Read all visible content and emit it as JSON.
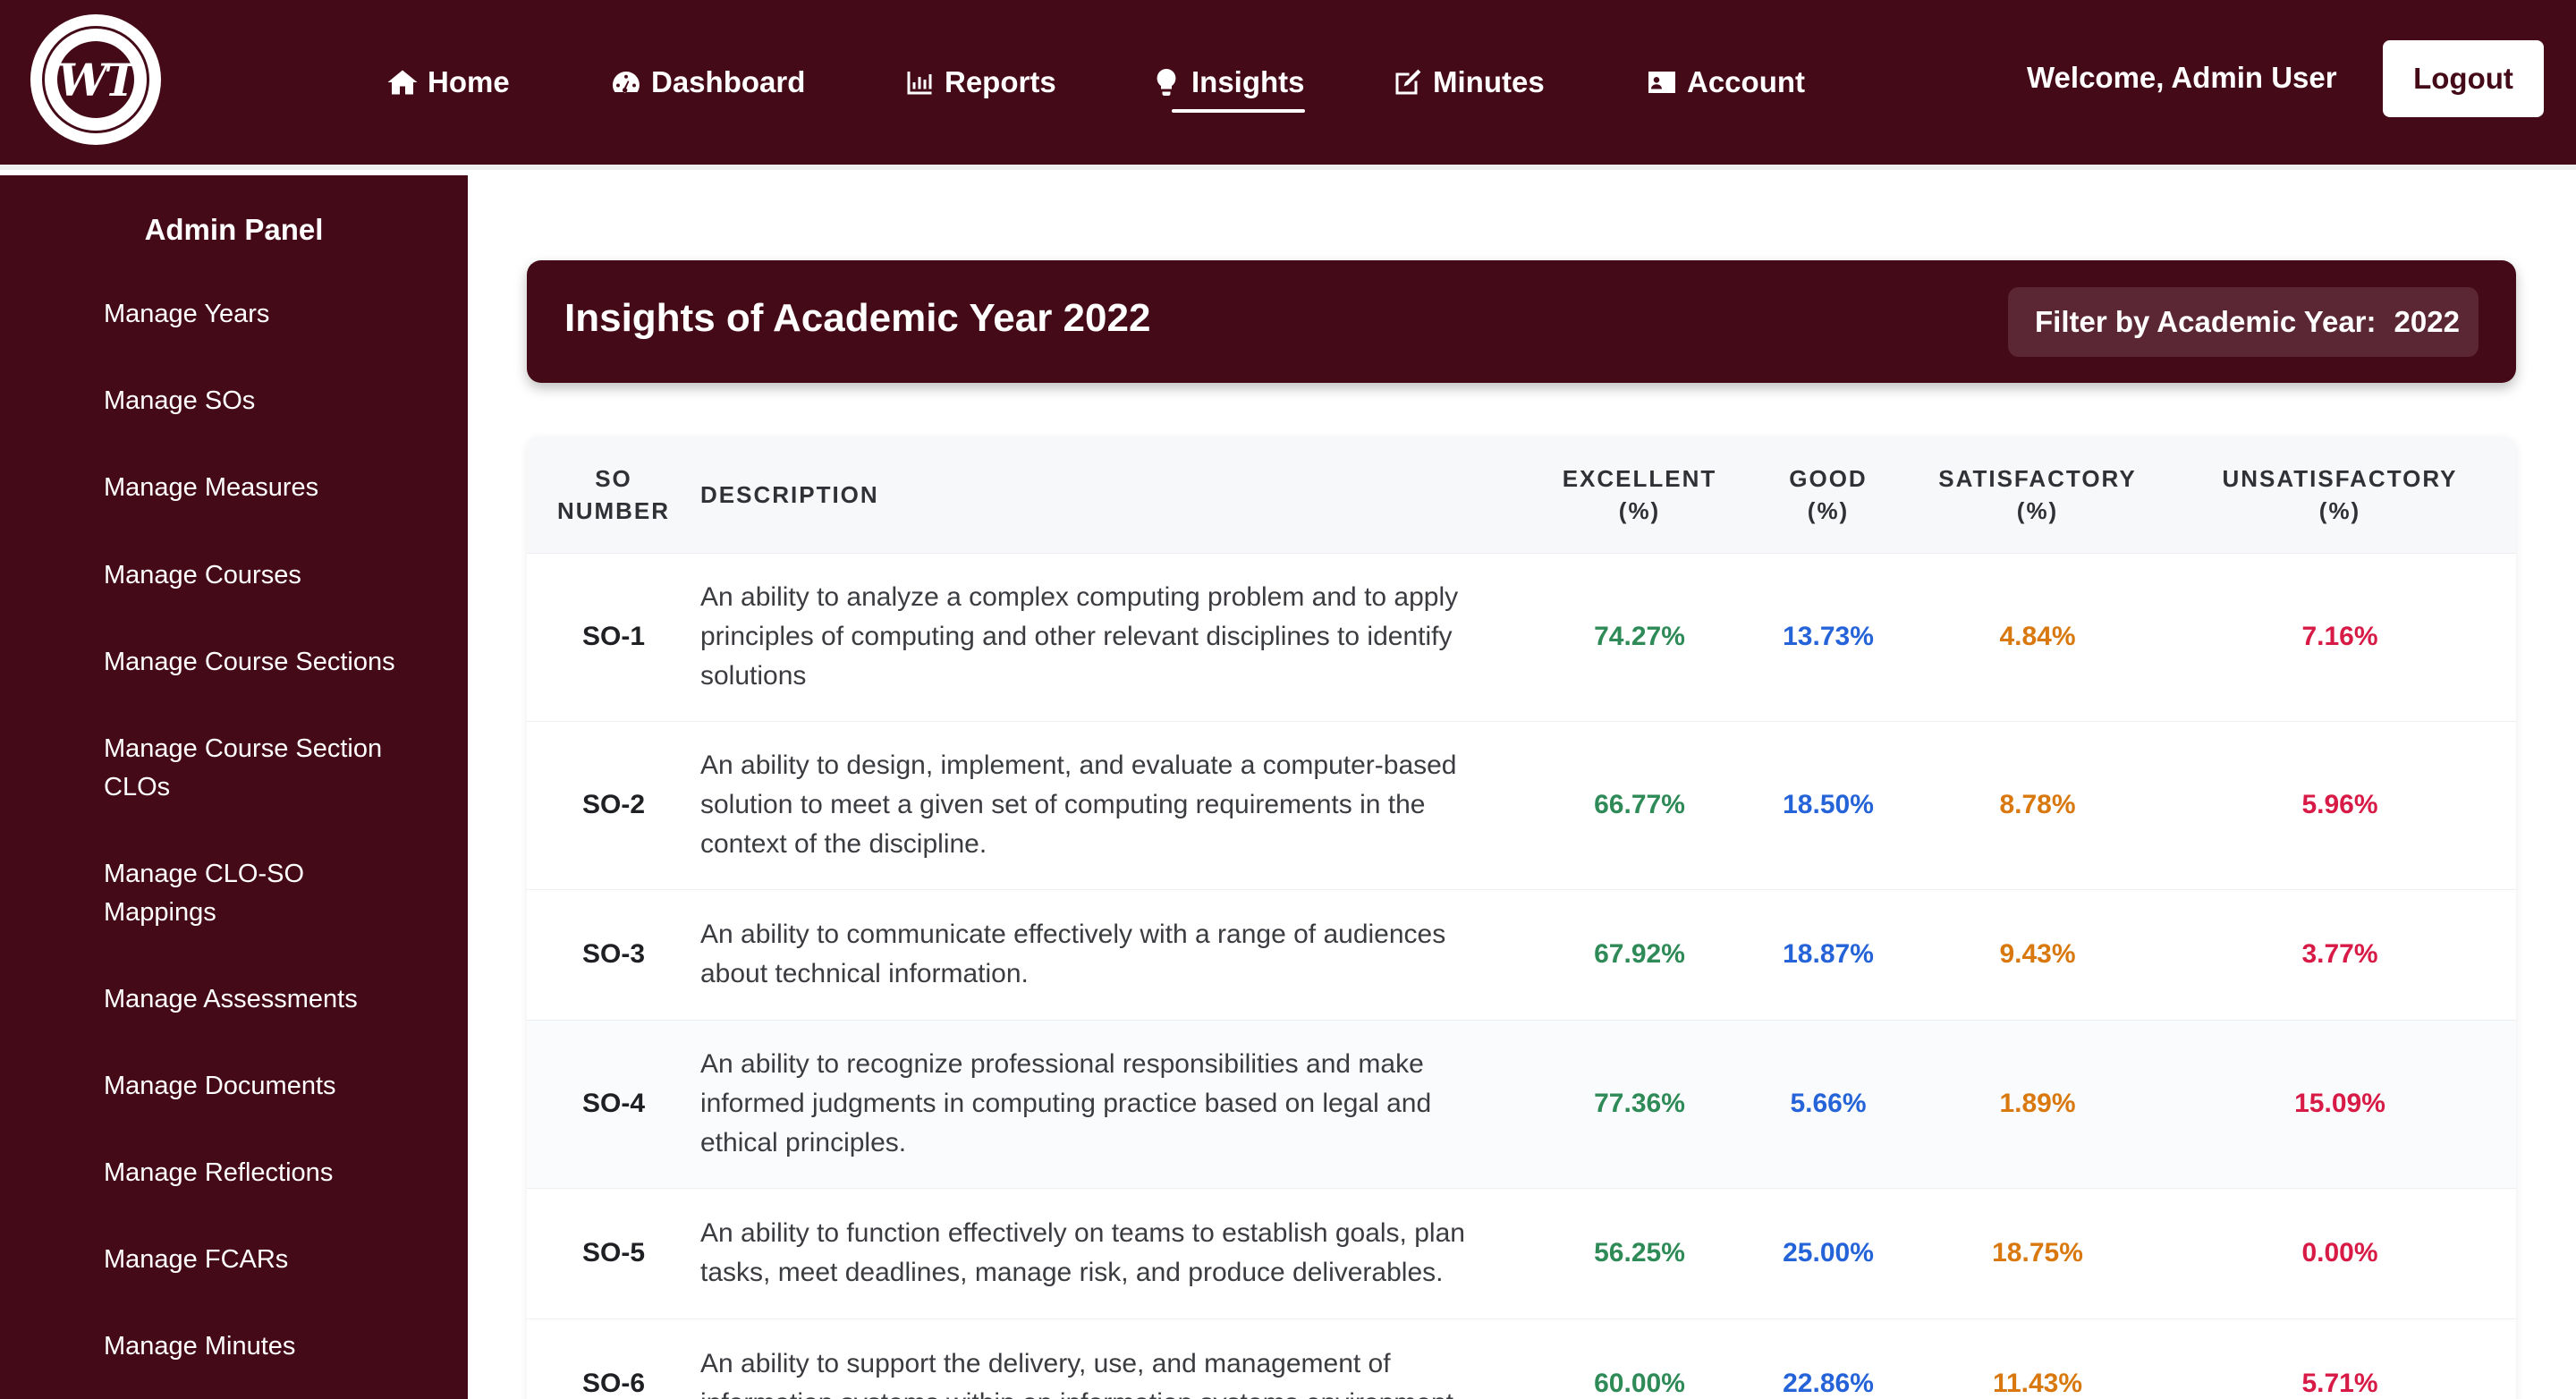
{
  "navbar": {
    "logo": {
      "initials": "WT",
      "icon": "university-seal"
    },
    "items": [
      {
        "label": "Home",
        "icon": "home-icon"
      },
      {
        "label": "Dashboard",
        "icon": "gauge-icon"
      },
      {
        "label": "Reports",
        "icon": "bar-chart-icon"
      },
      {
        "label": "Insights",
        "icon": "lightbulb-icon",
        "active": true
      },
      {
        "label": "Minutes",
        "icon": "edit-icon"
      },
      {
        "label": "Account",
        "icon": "id-card-icon"
      }
    ],
    "welcome": "Welcome, Admin User",
    "logout_label": "Logout"
  },
  "sidebar": {
    "title": "Admin Panel",
    "items": [
      "Manage Years",
      "Manage SOs",
      "Manage Measures",
      "Manage Courses",
      "Manage Course Sections",
      "Manage Course Section CLOs",
      "Manage CLO-SO Mappings",
      "Manage Assessments",
      "Manage Documents",
      "Manage Reflections",
      "Manage FCARs",
      "Manage Minutes"
    ]
  },
  "header": {
    "title": "Insights of Academic Year 2022",
    "filter_label": "Filter by Academic Year:",
    "filter_value": "2022"
  },
  "table": {
    "columns": {
      "so_line1": "SO",
      "so_line2": "NUMBER",
      "description": "DESCRIPTION",
      "excellent_line1": "EXCELLENT",
      "excellent_line2": "(%)",
      "good_line1": "GOOD",
      "good_line2": "(%)",
      "satisfactory_line1": "SATISFACTORY",
      "satisfactory_line2": "(%)",
      "unsatisfactory_line1": "UNSATISFACTORY",
      "unsatisfactory_line2": "(%)"
    },
    "rows": [
      {
        "so": "SO-1",
        "description": "An ability to analyze a complex computing problem and to apply principles of computing and other relevant disciplines to identify solutions",
        "excellent": "74.27%",
        "good": "13.73%",
        "satisfactory": "4.84%",
        "unsatisfactory": "7.16%"
      },
      {
        "so": "SO-2",
        "description": "An ability to design, implement, and evaluate a computer-based solution to meet a given set of computing requirements in the context of the discipline.",
        "excellent": "66.77%",
        "good": "18.50%",
        "satisfactory": "8.78%",
        "unsatisfactory": "5.96%"
      },
      {
        "so": "SO-3",
        "description": "An ability to communicate effectively with a range of audiences about technical information.",
        "excellent": "67.92%",
        "good": "18.87%",
        "satisfactory": "9.43%",
        "unsatisfactory": "3.77%"
      },
      {
        "so": "SO-4",
        "description": "An ability to recognize professional responsibilities and make informed judgments in computing practice based on legal and ethical principles.",
        "excellent": "77.36%",
        "good": "5.66%",
        "satisfactory": "1.89%",
        "unsatisfactory": "15.09%"
      },
      {
        "so": "SO-5",
        "description": "An ability to function effectively on teams to establish goals, plan tasks, meet deadlines, manage risk, and produce deliverables.",
        "excellent": "56.25%",
        "good": "25.00%",
        "satisfactory": "18.75%",
        "unsatisfactory": "0.00%"
      },
      {
        "so": "SO-6",
        "description": "An ability to support the delivery, use, and management of information systems within an information systems environment.",
        "excellent": "60.00%",
        "good": "22.86%",
        "satisfactory": "11.43%",
        "unsatisfactory": "5.71%"
      }
    ]
  },
  "colors": {
    "brand_maroon": "#450a18",
    "excellent": "#2e8a57",
    "good": "#2563d8",
    "satisfactory": "#d9780f",
    "unsatisfactory": "#d81b46"
  }
}
